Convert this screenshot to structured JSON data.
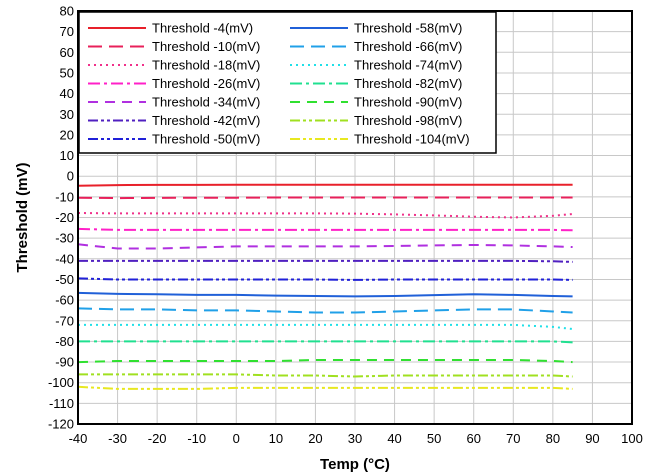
{
  "chart_data": {
    "type": "line",
    "xlabel": "Temp (°C)",
    "ylabel": "Threshold (mV)",
    "xlim": [
      -40,
      100
    ],
    "ylim": [
      -120,
      80
    ],
    "x_ticks": [
      -40,
      -30,
      -20,
      -10,
      0,
      10,
      20,
      30,
      40,
      50,
      60,
      70,
      80,
      90,
      100
    ],
    "y_ticks": [
      80,
      70,
      60,
      50,
      40,
      30,
      20,
      10,
      0,
      -10,
      -20,
      -30,
      -40,
      -50,
      -60,
      -70,
      -80,
      -90,
      -100,
      -110,
      -120
    ],
    "grid": true,
    "legend_position": "top-left",
    "x": [
      -40,
      -30,
      -20,
      -10,
      0,
      10,
      20,
      30,
      40,
      50,
      60,
      70,
      80,
      85
    ],
    "series": [
      {
        "name": "Threshold -4(mV)",
        "color": "#e8202a",
        "dash": "solid",
        "values": [
          -4.6,
          -4.3,
          -4.2,
          -4.2,
          -4.1,
          -4.1,
          -4.1,
          -4.1,
          -4.1,
          -4.1,
          -4.1,
          -4.1,
          -4.1,
          -4.1
        ]
      },
      {
        "name": "Threshold -10(mV)",
        "color": "#e8205a",
        "dash": "longdash",
        "values": [
          -10.4,
          -10.6,
          -10.5,
          -10.4,
          -10.4,
          -10.3,
          -10.3,
          -10.3,
          -10.3,
          -10.3,
          -10.3,
          -10.3,
          -10.3,
          -10.3
        ]
      },
      {
        "name": "Threshold -18(mV)",
        "color": "#f0308a",
        "dash": "dot",
        "values": [
          -17.8,
          -18.0,
          -18.0,
          -18.0,
          -18.0,
          -18.0,
          -18.0,
          -18.1,
          -18.5,
          -19.0,
          -19.6,
          -20.0,
          -19.2,
          -18.3
        ]
      },
      {
        "name": "Threshold -26(mV)",
        "color": "#ff20c8",
        "dash": "dashdot",
        "values": [
          -25.5,
          -26.0,
          -26.0,
          -26.0,
          -26.0,
          -26.0,
          -26.0,
          -26.0,
          -26.0,
          -26.0,
          -26.0,
          -26.0,
          -26.0,
          -26.2
        ]
      },
      {
        "name": "Threshold -34(mV)",
        "color": "#b030e0",
        "dash": "dash",
        "values": [
          -33.0,
          -35.0,
          -35.0,
          -34.5,
          -34.0,
          -34.0,
          -34.0,
          -34.0,
          -33.8,
          -33.5,
          -33.3,
          -33.5,
          -34.0,
          -34.3
        ]
      },
      {
        "name": "Threshold -42(mV)",
        "color": "#5020c0",
        "dash": "dashdotdot",
        "values": [
          -41.0,
          -41.0,
          -41.0,
          -41.0,
          -41.0,
          -41.0,
          -41.0,
          -41.0,
          -41.0,
          -41.0,
          -41.0,
          -41.0,
          -41.2,
          -41.5
        ]
      },
      {
        "name": "Threshold -50(mV)",
        "color": "#2020d8",
        "dash": "dashdotdot",
        "values": [
          -49.5,
          -50.0,
          -50.0,
          -50.0,
          -50.0,
          -50.0,
          -50.0,
          -50.2,
          -50.0,
          -50.0,
          -50.0,
          -50.0,
          -50.0,
          -50.2
        ]
      },
      {
        "name": "Threshold -58(mV)",
        "color": "#2060d8",
        "dash": "solid",
        "values": [
          -56.5,
          -57.0,
          -57.2,
          -57.5,
          -57.5,
          -57.8,
          -58.0,
          -58.2,
          -58.0,
          -57.6,
          -57.2,
          -57.5,
          -58.0,
          -58.2
        ]
      },
      {
        "name": "Threshold -66(mV)",
        "color": "#20a0e8",
        "dash": "longdash",
        "values": [
          -64.0,
          -64.5,
          -64.5,
          -65.0,
          -65.0,
          -65.5,
          -66.0,
          -66.0,
          -65.5,
          -65.0,
          -64.5,
          -64.5,
          -65.5,
          -66.0
        ]
      },
      {
        "name": "Threshold -74(mV)",
        "color": "#20e0e8",
        "dash": "dot",
        "values": [
          -72.0,
          -72.0,
          -72.0,
          -72.0,
          -72.0,
          -72.0,
          -72.0,
          -72.0,
          -72.0,
          -72.0,
          -72.0,
          -72.0,
          -73.0,
          -74.0
        ]
      },
      {
        "name": "Threshold -82(mV)",
        "color": "#20e090",
        "dash": "dashdot",
        "values": [
          -80.0,
          -80.0,
          -80.0,
          -80.0,
          -80.0,
          -80.0,
          -80.0,
          -80.0,
          -80.0,
          -80.0,
          -80.0,
          -80.0,
          -80.0,
          -80.5
        ]
      },
      {
        "name": "Threshold -90(mV)",
        "color": "#30e030",
        "dash": "dash",
        "values": [
          -90.0,
          -89.5,
          -89.5,
          -89.5,
          -89.5,
          -89.5,
          -89.0,
          -89.0,
          -89.0,
          -89.0,
          -89.0,
          -89.0,
          -89.5,
          -90.0
        ]
      },
      {
        "name": "Threshold -98(mV)",
        "color": "#a0e020",
        "dash": "dashdotdot",
        "values": [
          -96.0,
          -96.0,
          -96.0,
          -96.0,
          -96.0,
          -96.5,
          -96.5,
          -97.0,
          -96.5,
          -96.5,
          -96.5,
          -96.5,
          -96.5,
          -97.0
        ]
      },
      {
        "name": "Threshold -104(mV)",
        "color": "#e8e820",
        "dash": "dashdotdot",
        "values": [
          -102.0,
          -103.0,
          -103.0,
          -103.0,
          -102.5,
          -102.5,
          -102.5,
          -102.5,
          -102.5,
          -102.5,
          -102.5,
          -102.5,
          -102.5,
          -103.0
        ]
      }
    ]
  }
}
